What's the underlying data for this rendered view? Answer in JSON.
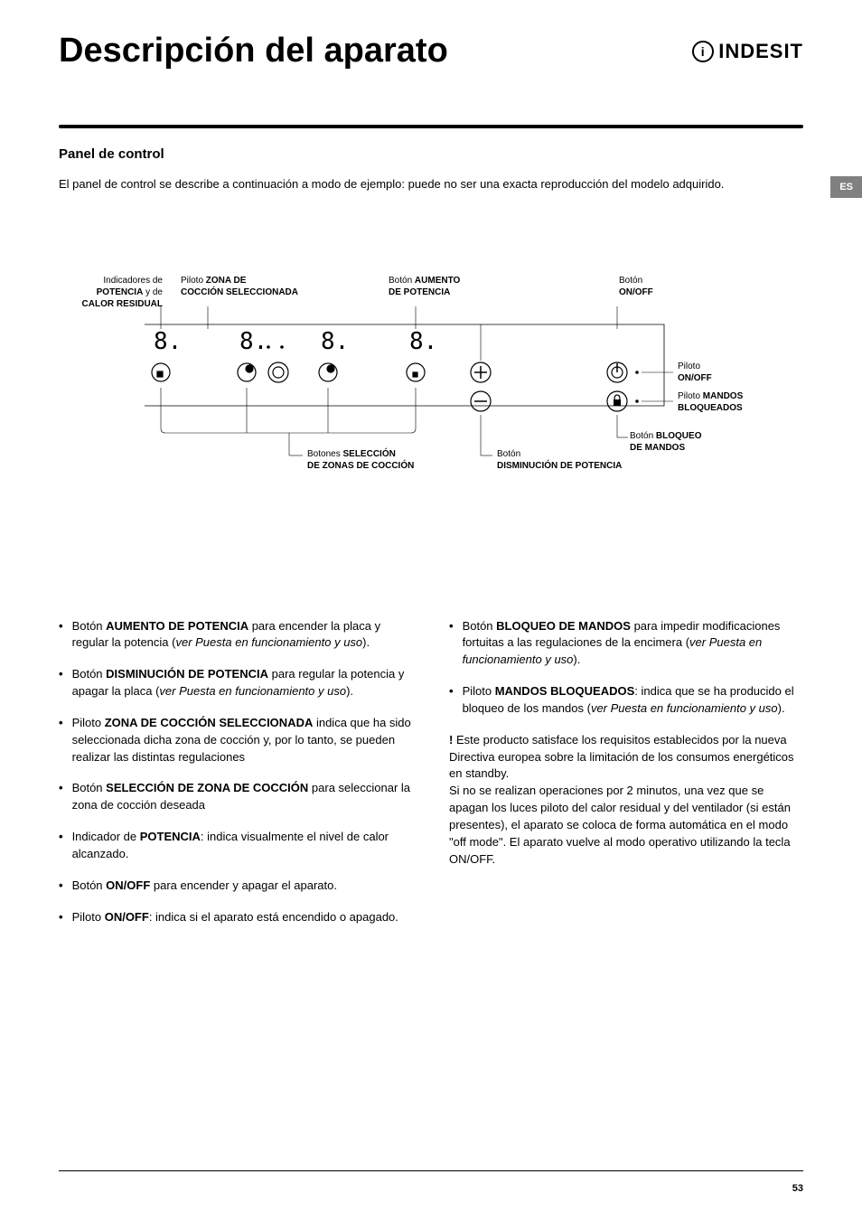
{
  "header": {
    "title": "Descripción del aparato",
    "logo": "INDESIT",
    "logo_icon": "i"
  },
  "lang_tab": "ES",
  "subtitle": "Panel de control",
  "intro": "El panel de control se describe a continuación a modo de ejemplo: puede no ser una exacta reproducción del modelo adquirido.",
  "diagram": {
    "labels": {
      "indicators": "Indicadores de",
      "indicators_b1": "POTENCIA",
      "indicators_mid": " y de",
      "indicators_b2": "CALOR RESIDUAL",
      "piloto_zona": "Piloto ",
      "piloto_zona_b": "ZONA DE",
      "piloto_zona_b2": "COCCIÓN SELECCIONADA",
      "boton_aumento": "Botón ",
      "boton_aumento_b": "AUMENTO",
      "boton_aumento_b2": "DE POTENCIA",
      "boton_onoff": "Botón",
      "boton_onoff_b": "ON/OFF",
      "piloto_onoff": "Piloto",
      "piloto_onoff_b": "ON/OFF",
      "piloto_mandos": "Piloto ",
      "piloto_mandos_b": "MANDOS",
      "piloto_mandos_b2": "BLOQUEADOS",
      "boton_bloqueo": "Botón ",
      "boton_bloqueo_b": "BLOQUEO",
      "boton_bloqueo_b2": "DE MANDOS",
      "boton_dism": "Botón",
      "boton_dism_b": "DISMINUCIÓN DE POTENCIA",
      "botones_sel": "Botones ",
      "botones_sel_b": "SELECCIÓN",
      "botones_sel_b2": "DE ZONAS DE COCCIÓN"
    }
  },
  "left_bullets": [
    {
      "pre": "Botón ",
      "bold": "AUMENTO DE POTENCIA",
      "post": " para encender la placa y regular la potencia  (",
      "em": "ver Puesta en funcionamiento y uso",
      "end": ")."
    },
    {
      "pre": "Botón ",
      "bold": "DISMINUCIÓN DE POTENCIA",
      "post": " para regular la potencia y apagar la placa  (",
      "em": "ver Puesta en funcionamiento y uso",
      "end": ")."
    },
    {
      "pre": "Piloto ",
      "bold": "ZONA DE COCCIÓN SELECCIONADA",
      "post": " indica que ha sido seleccionada dicha zona de cocción y, por lo tanto, se pueden realizar las distintas regulaciones",
      "em": "",
      "end": ""
    },
    {
      "pre": "Botón ",
      "bold": "SELECCIÓN DE ZONA DE COCCIÓN",
      "post": " para seleccionar la zona de cocción deseada",
      "em": "",
      "end": ""
    },
    {
      "pre": "Indicador de ",
      "bold": "POTENCIA",
      "post": ": indica visualmente el nivel de calor alcanzado.",
      "em": "",
      "end": ""
    },
    {
      "pre": "Botón ",
      "bold": "ON/OFF",
      "post": " para encender y apagar el aparato.",
      "em": "",
      "end": ""
    },
    {
      "pre": "Piloto ",
      "bold": "ON/OFF",
      "post": ": indica si el aparato está encendido o apagado.",
      "em": "",
      "end": ""
    }
  ],
  "right_bullets": [
    {
      "pre": "Botón ",
      "bold": "BLOQUEO DE MANDOS",
      "post": " para impedir modificaciones fortuitas a las regulaciones de la encimera (",
      "em": "ver Puesta en funcionamiento y uso",
      "end": ")."
    },
    {
      "pre": "Piloto ",
      "bold": "MANDOS BLOQUEADOS",
      "post": ": indica que se ha producido el bloqueo de los mandos (",
      "em": "ver Puesta en funcionamiento y uso",
      "end": ")."
    }
  ],
  "note": "Este producto satisface los requisitos establecidos por la nueva Directiva europea sobre la limitación de los consumos energéticos en standby.\nSi no se realizan operaciones por 2 minutos, una vez que se apagan los luces piloto del calor residual y del ventilador (si están presentes), el aparato se coloca de forma automática en el modo \"off mode\". El aparato vuelve al modo operativo utilizando la tecla ON/OFF.",
  "note_prefix": "!",
  "page_num": "53"
}
